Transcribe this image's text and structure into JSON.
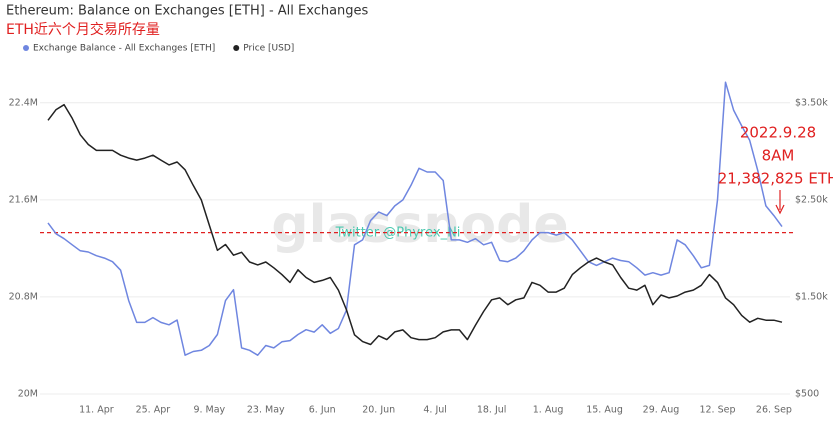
{
  "chart_data": {
    "type": "line",
    "title": "Ethereum: Balance on Exchanges [ETH] - All Exchanges",
    "subtitle": "ETH近六个月交易所存量",
    "watermarks": [
      "glassnode",
      "Twitter @Phyrex_Ni"
    ],
    "x": [
      "30. Mar",
      "1. Apr",
      "3. Apr",
      "5. Apr",
      "7. Apr",
      "9. Apr",
      "11. Apr",
      "13. Apr",
      "15. Apr",
      "17. Apr",
      "19. Apr",
      "21. Apr",
      "23. Apr",
      "25. Apr",
      "27. Apr",
      "29. Apr",
      "1. May",
      "3. May",
      "5. May",
      "7. May",
      "9. May",
      "11. May",
      "13. May",
      "15. May",
      "17. May",
      "19. May",
      "21. May",
      "23. May",
      "25. May",
      "27. May",
      "29. May",
      "31. May",
      "2. Jun",
      "4. Jun",
      "6. Jun",
      "8. Jun",
      "10. Jun",
      "12. Jun",
      "14. Jun",
      "16. Jun",
      "18. Jun",
      "20. Jun",
      "22. Jun",
      "24. Jun",
      "26. Jun",
      "28. Jun",
      "30. Jun",
      "2. Jul",
      "4. Jul",
      "6. Jul",
      "8. Jul",
      "10. Jul",
      "12. Jul",
      "14. Jul",
      "16. Jul",
      "18. Jul",
      "20. Jul",
      "22. Jul",
      "24. Jul",
      "26. Jul",
      "28. Jul",
      "30. Jul",
      "1. Aug",
      "3. Aug",
      "5. Aug",
      "7. Aug",
      "9. Aug",
      "11. Aug",
      "13. Aug",
      "15. Aug",
      "17. Aug",
      "19. Aug",
      "21. Aug",
      "23. Aug",
      "25. Aug",
      "27. Aug",
      "29. Aug",
      "31. Aug",
      "2. Sep",
      "4. Sep",
      "6. Sep",
      "8. Sep",
      "10. Sep",
      "12. Sep",
      "14. Sep",
      "16. Sep",
      "18. Sep",
      "20. Sep",
      "22. Sep",
      "24. Sep",
      "26. Sep",
      "28. Sep"
    ],
    "xticks": [
      "11. Apr",
      "25. Apr",
      "9. May",
      "23. May",
      "6. Jun",
      "20. Jun",
      "4. Jul",
      "18. Jul",
      "1. Aug",
      "15. Aug",
      "29. Aug",
      "12. Sep",
      "26. Sep"
    ],
    "series": [
      {
        "name": "Exchange Balance - All Exchanges [ETH]",
        "color": "#6f86e0",
        "axis": "y",
        "values": [
          21.41,
          21.32,
          21.28,
          21.23,
          21.18,
          21.17,
          21.14,
          21.12,
          21.09,
          21.02,
          20.77,
          20.59,
          20.59,
          20.63,
          20.59,
          20.57,
          20.61,
          20.32,
          20.35,
          20.36,
          20.4,
          20.49,
          20.77,
          20.86,
          20.38,
          20.36,
          20.32,
          20.4,
          20.38,
          20.43,
          20.44,
          20.49,
          20.53,
          20.51,
          20.57,
          20.5,
          20.54,
          20.69,
          21.23,
          21.27,
          21.43,
          21.5,
          21.47,
          21.55,
          21.6,
          21.72,
          21.86,
          21.83,
          21.83,
          21.76,
          21.27,
          21.27,
          21.25,
          21.28,
          21.23,
          21.25,
          21.1,
          21.09,
          21.12,
          21.18,
          21.27,
          21.33,
          21.33,
          21.31,
          21.33,
          21.27,
          21.18,
          21.09,
          21.06,
          21.09,
          21.12,
          21.1,
          21.09,
          21.04,
          20.98,
          21.0,
          20.98,
          21.0,
          21.27,
          21.23,
          21.14,
          21.04,
          21.06,
          21.6,
          22.57,
          22.34,
          22.21,
          22.09,
          21.84,
          21.55,
          21.47,
          21.38
        ]
      },
      {
        "name": "Price [USD]",
        "color": "#222222",
        "axis": "y2",
        "values": [
          3320,
          3430,
          3480,
          3340,
          3170,
          3070,
          3010,
          3010,
          3010,
          2960,
          2930,
          2910,
          2930,
          2960,
          2910,
          2860,
          2890,
          2810,
          2650,
          2500,
          2240,
          1980,
          2040,
          1930,
          1960,
          1860,
          1830,
          1860,
          1800,
          1730,
          1650,
          1780,
          1700,
          1650,
          1670,
          1700,
          1570,
          1370,
          1110,
          1040,
          1010,
          1100,
          1060,
          1140,
          1160,
          1080,
          1060,
          1060,
          1080,
          1140,
          1160,
          1160,
          1060,
          1210,
          1350,
          1470,
          1490,
          1420,
          1470,
          1490,
          1650,
          1620,
          1550,
          1550,
          1590,
          1730,
          1800,
          1860,
          1900,
          1860,
          1830,
          1700,
          1590,
          1570,
          1620,
          1420,
          1520,
          1490,
          1510,
          1550,
          1570,
          1620,
          1730,
          1650,
          1490,
          1420,
          1310,
          1240,
          1280,
          1260,
          1260,
          1240
        ]
      }
    ],
    "ylim": [
      20,
      23
    ],
    "yticks": [
      {
        "value": 20,
        "label": "20M"
      },
      {
        "value": 20.8,
        "label": "20.8M"
      },
      {
        "value": 21.6,
        "label": "21.6M"
      },
      {
        "value": 22.4,
        "label": "22.4M"
      }
    ],
    "y2lim": [
      500,
      4250
    ],
    "y2ticks": [
      {
        "value": 500,
        "label": "$500"
      },
      {
        "value": 1500,
        "label": "$1.50k"
      },
      {
        "value": 2500,
        "label": "$2.50k"
      },
      {
        "value": 3500,
        "label": "$3.50k"
      }
    ],
    "grid": true,
    "legend": "top-left",
    "reference_line": {
      "value": 21.33,
      "color": "#e02020"
    },
    "annotation": {
      "lines": [
        "2022.9.28",
        "8AM",
        "21,382,825 ETH"
      ],
      "color": "#e02020"
    }
  }
}
